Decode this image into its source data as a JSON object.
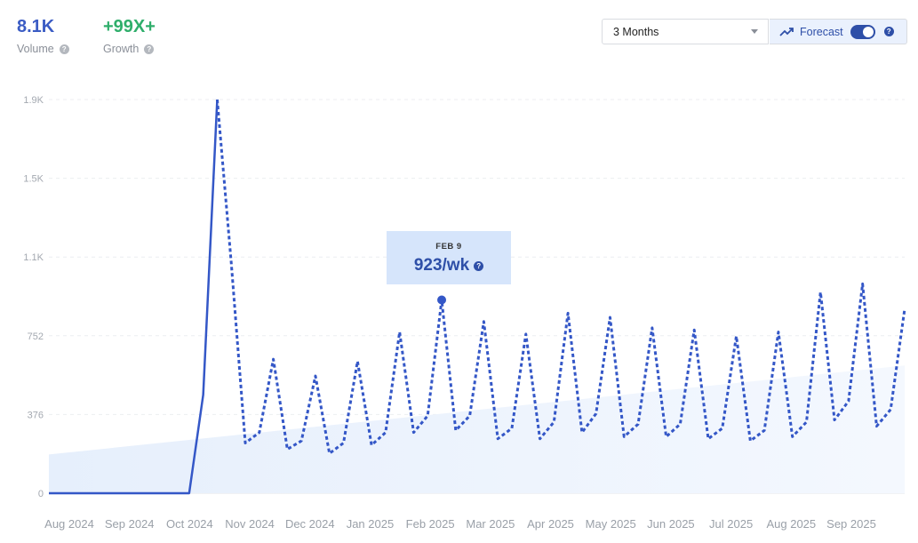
{
  "stats": {
    "volume": {
      "value": "8.1K",
      "label": "Volume"
    },
    "growth": {
      "value": "+99X+",
      "label": "Growth"
    }
  },
  "controls": {
    "range_select": "3 Months",
    "forecast_label": "Forecast",
    "forecast_enabled": true
  },
  "tooltip": {
    "date": "FEB 9",
    "value": "923/wk"
  },
  "colors": {
    "line": "#3457c7",
    "trend_fill": "#e6effc",
    "volume": "#3b5cc4",
    "growth": "#2fae6b"
  },
  "chart_data": {
    "type": "line",
    "y_ticks": [
      "0",
      "376",
      "752",
      "1.1K",
      "1.5K",
      "1.9K"
    ],
    "y_tick_values": [
      0,
      376,
      752,
      1128,
      1504,
      1880
    ],
    "ylim": [
      0,
      1880
    ],
    "x_ticks": [
      "Aug 2024",
      "Sep 2024",
      "Oct 2024",
      "Nov 2024",
      "Dec 2024",
      "Jan 2025",
      "Feb 2025",
      "Mar 2025",
      "Apr 2025",
      "May 2025",
      "Jun 2025",
      "Jul 2025",
      "Aug 2025",
      "Sep 2025"
    ],
    "grid": true,
    "series": [
      {
        "style": "solid",
        "x": [
          "2024-07-28",
          "2024-08-04",
          "2024-08-11",
          "2024-08-18",
          "2024-08-25",
          "2024-09-01",
          "2024-09-08",
          "2024-09-15",
          "2024-09-22",
          "2024-09-29",
          "2024-10-06",
          "2024-10-13",
          "2024-10-20"
        ],
        "values": [
          0,
          0,
          0,
          0,
          0,
          0,
          0,
          0,
          0,
          0,
          0,
          470,
          1880
        ]
      },
      {
        "style": "dashed",
        "x": [
          "2024-10-20",
          "2024-10-27",
          "2024-11-03",
          "2024-11-10",
          "2024-11-17",
          "2024-11-24",
          "2024-12-01",
          "2024-12-08",
          "2024-12-15",
          "2024-12-22",
          "2024-12-29",
          "2025-01-05",
          "2025-01-12",
          "2025-01-19",
          "2025-01-26",
          "2025-02-02",
          "2025-02-09",
          "2025-02-16",
          "2025-02-23",
          "2025-03-02",
          "2025-03-09",
          "2025-03-16",
          "2025-03-23",
          "2025-03-30",
          "2025-04-06",
          "2025-04-13",
          "2025-04-20",
          "2025-04-27",
          "2025-05-04",
          "2025-05-11",
          "2025-05-18",
          "2025-05-25",
          "2025-06-01",
          "2025-06-08",
          "2025-06-15",
          "2025-06-22",
          "2025-06-29",
          "2025-07-06",
          "2025-07-13",
          "2025-07-20",
          "2025-07-27",
          "2025-08-03",
          "2025-08-10",
          "2025-08-17",
          "2025-08-24",
          "2025-08-31",
          "2025-09-07",
          "2025-09-14",
          "2025-09-21",
          "2025-09-28"
        ],
        "values": [
          1880,
          1100,
          240,
          290,
          640,
          210,
          250,
          560,
          190,
          240,
          630,
          230,
          290,
          770,
          290,
          370,
          923,
          300,
          370,
          820,
          260,
          310,
          760,
          260,
          340,
          860,
          290,
          380,
          840,
          270,
          330,
          790,
          270,
          330,
          780,
          260,
          310,
          750,
          250,
          300,
          770,
          270,
          340,
          960,
          350,
          440,
          1000,
          320,
          400,
          880
        ]
      }
    ],
    "trend_area": {
      "x": [
        "2024-07-28",
        "2025-09-28"
      ],
      "values": [
        185,
        610
      ]
    },
    "highlight": {
      "x": "2025-02-09",
      "value": 923
    }
  }
}
